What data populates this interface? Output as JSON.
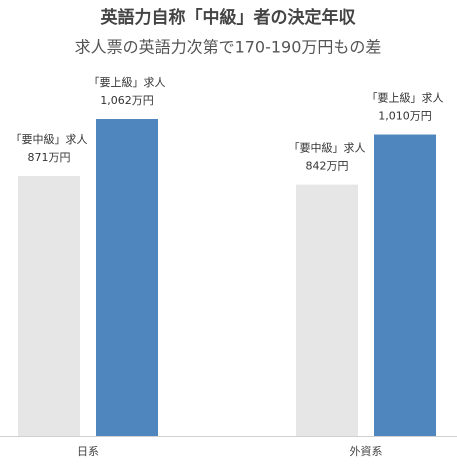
{
  "chart_data": {
    "type": "bar",
    "title": "英語力自称「中級」者の決定年収",
    "subtitle": "求人票の英語力次第で170-190万円もの差",
    "categories": [
      "日系",
      "外資系"
    ],
    "series": [
      {
        "name": "「要中級」求人",
        "color": "#e7e6e6",
        "values": [
          871,
          842
        ],
        "value_labels": [
          "871万円",
          "842万円"
        ]
      },
      {
        "name": "「要上級」求人",
        "color": "#4e86bd",
        "values": [
          1062,
          1010
        ],
        "value_labels": [
          "1,062万円",
          "1,010万円"
        ]
      }
    ]
  }
}
